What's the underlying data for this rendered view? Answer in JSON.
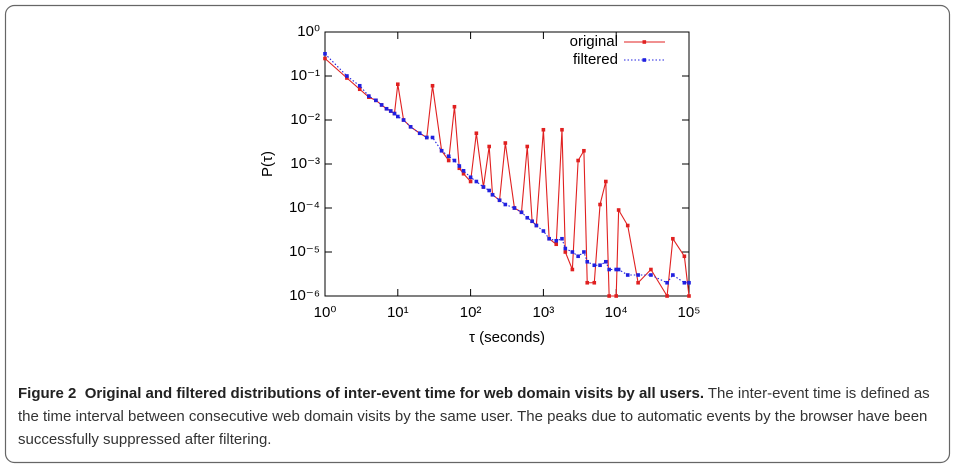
{
  "chart_data": {
    "type": "line",
    "log_x": true,
    "log_y": true,
    "x_label": "τ (seconds)",
    "y_label": "P(τ)",
    "legend": "top-right",
    "x": [
      1,
      2,
      3,
      4,
      5,
      6,
      7,
      8,
      9,
      10,
      12,
      15,
      20,
      25,
      30,
      40,
      50,
      60,
      70,
      80,
      100,
      120,
      150,
      180,
      200,
      250,
      300,
      400,
      500,
      600,
      700,
      800,
      1000,
      1200,
      1500,
      1800,
      2000,
      2500,
      3000,
      3600,
      4000,
      5000,
      6000,
      7200,
      8000,
      10000,
      10800,
      14400,
      20000,
      30000,
      50000,
      60000,
      86400,
      100000
    ],
    "series": [
      {
        "name": "original",
        "color": "#e02020",
        "dash": "solid",
        "values": [
          0.25,
          0.09,
          0.05,
          0.033,
          0.028,
          0.022,
          0.018,
          0.016,
          0.014,
          0.065,
          0.01,
          0.007,
          0.005,
          0.004,
          0.06,
          0.002,
          0.0012,
          0.02,
          0.0008,
          0.0006,
          0.0004,
          0.005,
          0.0003,
          0.0025,
          0.0002,
          0.00015,
          0.003,
          0.0001,
          8e-05,
          0.0025,
          5e-05,
          4e-05,
          0.006,
          2e-05,
          1.5e-05,
          0.006,
          1e-05,
          4e-06,
          0.0012,
          0.002,
          2e-06,
          2e-06,
          0.00012,
          0.0004,
          1e-06,
          1e-06,
          9e-05,
          4e-05,
          2e-06,
          4e-06,
          1e-06,
          2e-05,
          8e-06,
          1e-06
        ]
      },
      {
        "name": "filtered",
        "color": "#2020e0",
        "dash": "dotted",
        "values": [
          0.32,
          0.1,
          0.06,
          0.035,
          0.028,
          0.022,
          0.018,
          0.016,
          0.014,
          0.012,
          0.01,
          0.007,
          0.005,
          0.004,
          0.004,
          0.002,
          0.0015,
          0.0012,
          0.0009,
          0.0007,
          0.0005,
          0.0004,
          0.0003,
          0.00025,
          0.0002,
          0.00015,
          0.00012,
          0.0001,
          8e-05,
          6e-05,
          5e-05,
          4e-05,
          3e-05,
          2e-05,
          1.8e-05,
          2e-05,
          1.2e-05,
          1e-05,
          8e-06,
          1e-05,
          6e-06,
          5e-06,
          5e-06,
          6e-06,
          4e-06,
          4e-06,
          4e-06,
          3e-06,
          3e-06,
          3e-06,
          2e-06,
          3e-06,
          2e-06,
          2e-06
        ]
      }
    ],
    "xlim": [
      1,
      100000
    ],
    "xticks": [
      {
        "value": 1,
        "label": "10⁰"
      },
      {
        "value": 10,
        "label": "10¹"
      },
      {
        "value": 100,
        "label": "10²"
      },
      {
        "value": 1000,
        "label": "10³"
      },
      {
        "value": 10000,
        "label": "10⁴"
      },
      {
        "value": 100000,
        "label": "10⁵"
      }
    ],
    "ylim": [
      1e-06,
      1
    ],
    "yticks": [
      {
        "value": 1e-06,
        "label": "10⁻⁶"
      },
      {
        "value": 1e-05,
        "label": "10⁻⁵"
      },
      {
        "value": 0.0001,
        "label": "10⁻⁴"
      },
      {
        "value": 0.001,
        "label": "10⁻³"
      },
      {
        "value": 0.01,
        "label": "10⁻²"
      },
      {
        "value": 0.1,
        "label": "10⁻¹"
      },
      {
        "value": 1,
        "label": "10⁰"
      }
    ]
  },
  "caption": {
    "label": "Figure 2",
    "title": "Original and filtered distributions of inter-event time for web domain visits by all users.",
    "text": "The inter-event time is defined as the time interval between consecutive web domain visits by the same user. The peaks due to automatic events by the browser have been successfully suppressed after filtering."
  }
}
